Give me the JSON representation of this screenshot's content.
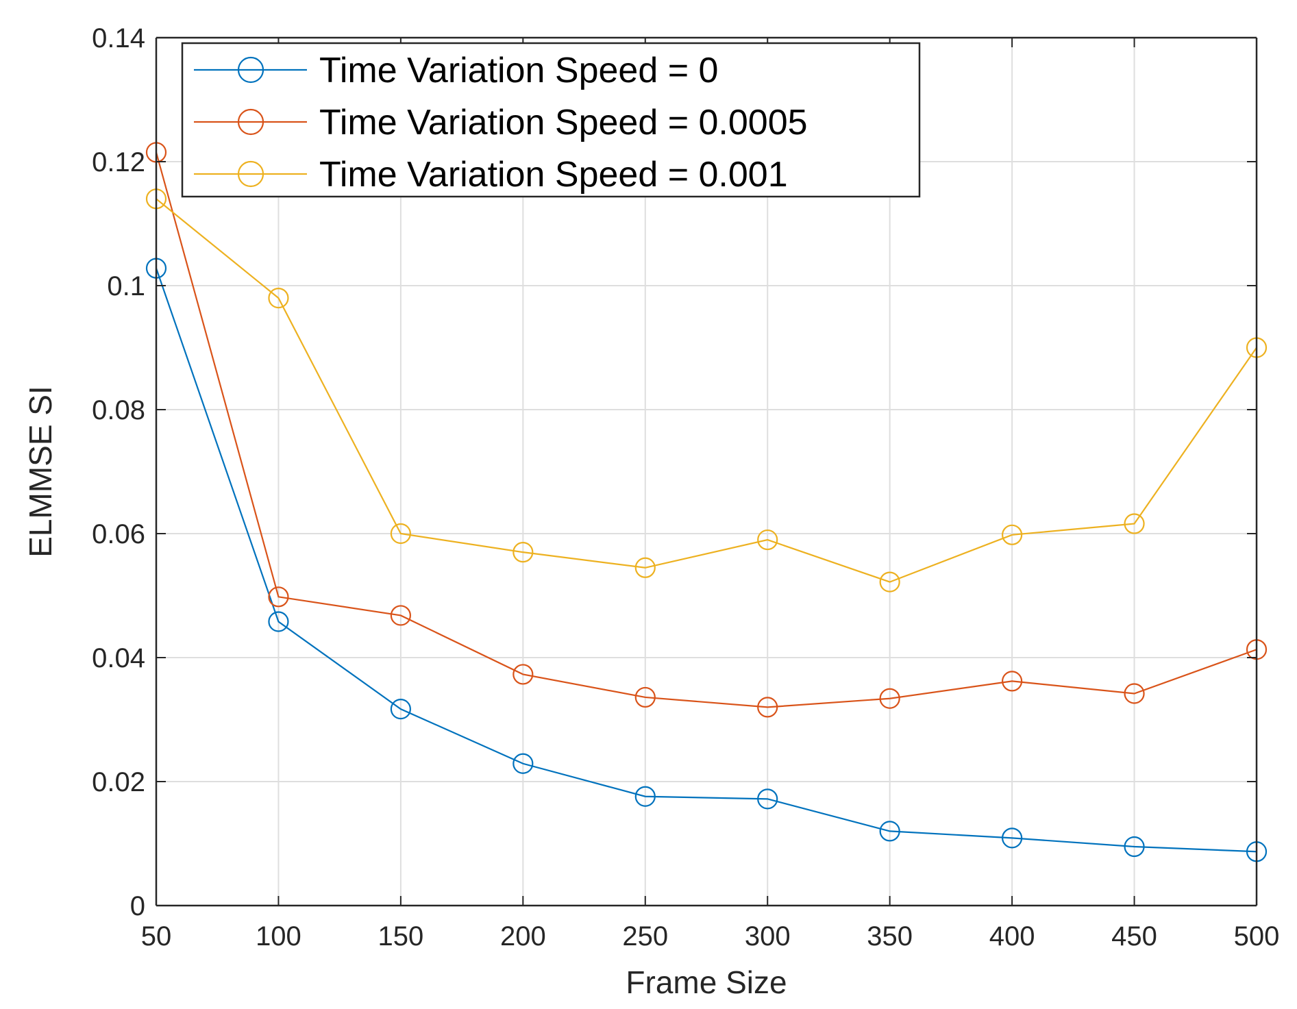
{
  "chart_data": {
    "type": "line",
    "title": "",
    "xlabel": "Frame Size",
    "ylabel": "ELMMSE SI",
    "x": [
      50,
      100,
      150,
      200,
      250,
      300,
      350,
      400,
      450,
      500
    ],
    "xlim": [
      50,
      500
    ],
    "ylim": [
      0,
      0.14
    ],
    "xticks": [
      50,
      100,
      150,
      200,
      250,
      300,
      350,
      400,
      450,
      500
    ],
    "xtick_labels": [
      "50",
      "100",
      "150",
      "200",
      "250",
      "300",
      "350",
      "400",
      "450",
      "500"
    ],
    "yticks": [
      0,
      0.02,
      0.04,
      0.06,
      0.08,
      0.1,
      0.12,
      0.14
    ],
    "ytick_labels": [
      "0",
      "0.02",
      "0.04",
      "0.06",
      "0.08",
      "0.1",
      "0.12",
      "0.14"
    ],
    "grid": true,
    "legend_position": "top-left",
    "marker": "circle",
    "series": [
      {
        "name": "Time Variation Speed = 0",
        "color": "#0072BD",
        "values": [
          0.1028,
          0.0458,
          0.0317,
          0.0229,
          0.0176,
          0.0172,
          0.012,
          0.0109,
          0.0095,
          0.0087
        ]
      },
      {
        "name": "Time Variation Speed = 0.0005",
        "color": "#D95319",
        "values": [
          0.1215,
          0.0498,
          0.0468,
          0.0373,
          0.0336,
          0.032,
          0.0334,
          0.0362,
          0.0342,
          0.0413
        ]
      },
      {
        "name": "Time Variation Speed = 0.001",
        "color": "#EDB120",
        "values": [
          0.114,
          0.098,
          0.06,
          0.057,
          0.0545,
          0.059,
          0.0522,
          0.0598,
          0.0616,
          0.09
        ]
      }
    ]
  }
}
